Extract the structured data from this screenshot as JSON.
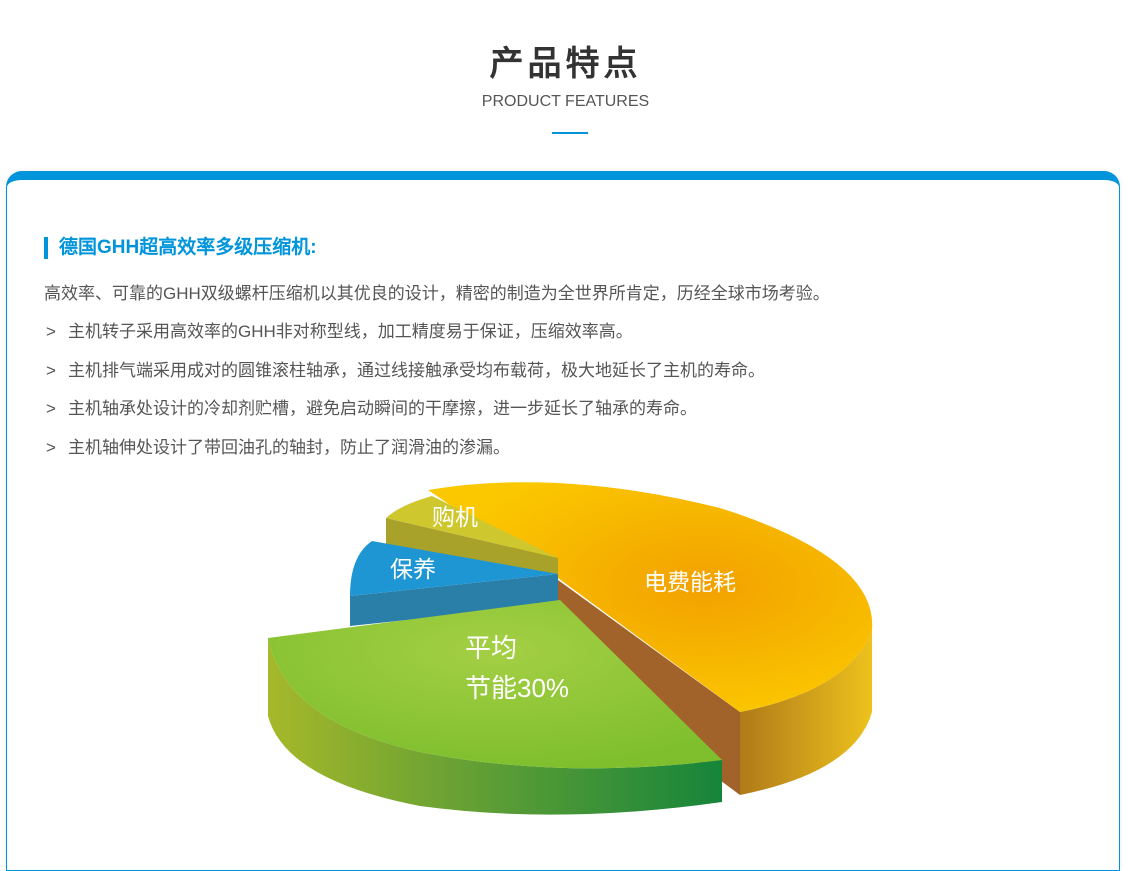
{
  "header": {
    "title": "产品特点",
    "subtitle": "PRODUCT FEATURES"
  },
  "section": {
    "heading": "德国GHH超高效率多级压缩机:",
    "intro": "高效率、可靠的GHH双级螺杆压缩机以其优良的设计，精密的制造为全世界所肯定，历经全球市场考验。",
    "bullet_marker": ">",
    "bullets": [
      "主机转子采用高效率的GHH非对称型线，加工精度易于保证，压缩效率高。",
      "主机排气端采用成对的圆锥滚柱轴承，通过线接触承受均布载荷，极大地延长了主机的寿命。",
      "主机轴承处设计的冷却剂贮槽，避免启动瞬间的干摩擦，进一步延长了轴承的寿命。",
      "主机轴伸处设计了带回油孔的轴封，防止了润滑油的渗漏。"
    ]
  },
  "pie_image": {
    "labels": {
      "electricity": "电费能耗",
      "savings_line1": "平均",
      "savings_line2": "节能30%",
      "maintenance": "保养",
      "purchase": "购机"
    },
    "colors": {
      "electricity": "#f5a800",
      "savings": "#8cc63f",
      "maintenance": "#1e96d4",
      "purchase": "#c8c62a",
      "accent": "#0095db"
    }
  }
}
